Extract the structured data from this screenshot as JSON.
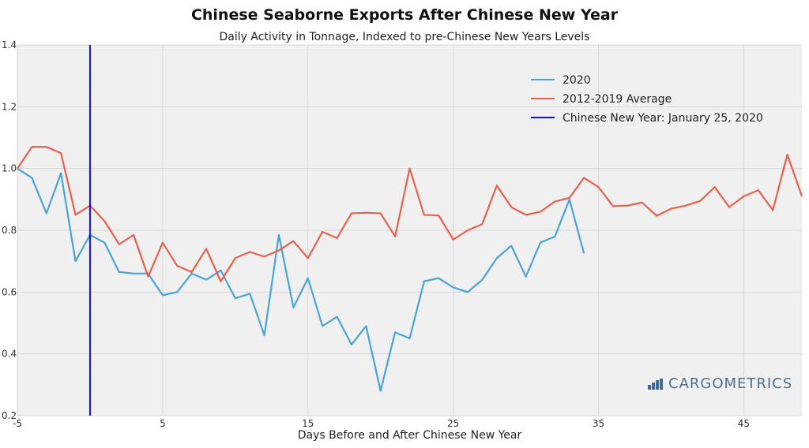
{
  "chart_data": {
    "type": "line",
    "title": "Chinese Seaborne Exports After Chinese New Year",
    "subtitle": "Daily Activity in Tonnage, Indexed to pre-Chinese New Years Levels",
    "xlabel": "Days Before and After Chinese New Year",
    "ylabel": "",
    "xlim": [
      -5,
      49
    ],
    "ylim": [
      0.2,
      1.4
    ],
    "xticks": [
      -5,
      5,
      15,
      25,
      35,
      45
    ],
    "yticks": [
      0.2,
      0.4,
      0.6,
      0.8,
      1.0,
      1.2,
      1.4
    ],
    "ytick_labels": [
      "0.2",
      "0.4",
      "0.6",
      "0.8",
      "1.0",
      "1.2",
      "1.4"
    ],
    "grid": true,
    "legend_position": "top-right",
    "series": [
      {
        "name": "2020",
        "color": "#4aa3d6",
        "x_start": -5,
        "values": [
          1.0,
          0.97,
          0.855,
          0.985,
          0.7,
          0.785,
          0.76,
          0.665,
          0.66,
          0.66,
          0.59,
          0.6,
          0.66,
          0.64,
          0.67,
          0.58,
          0.595,
          0.46,
          0.785,
          0.55,
          0.645,
          0.49,
          0.52,
          0.43,
          0.49,
          0.28,
          0.47,
          0.45,
          0.635,
          0.645,
          0.615,
          0.6,
          0.64,
          0.71,
          0.75,
          0.65,
          0.76,
          0.78,
          0.9,
          0.725
        ]
      },
      {
        "name": "2012-2019 Average",
        "color": "#e8604c",
        "x_start": -5,
        "values": [
          1.0,
          1.07,
          1.07,
          1.05,
          0.85,
          0.88,
          0.83,
          0.755,
          0.785,
          0.65,
          0.76,
          0.685,
          0.665,
          0.74,
          0.635,
          0.71,
          0.73,
          0.715,
          0.735,
          0.765,
          0.71,
          0.795,
          0.775,
          0.855,
          0.857,
          0.855,
          0.78,
          1.0,
          0.85,
          0.848,
          0.77,
          0.8,
          0.82,
          0.945,
          0.875,
          0.85,
          0.86,
          0.893,
          0.905,
          0.97,
          0.94,
          0.878,
          0.88,
          0.89,
          0.847,
          0.87,
          0.88,
          0.895,
          0.94,
          0.875,
          0.91,
          0.93,
          0.865,
          1.045,
          0.91
        ]
      }
    ],
    "vlines": [
      {
        "name": "Chinese New Year: January 25, 2020",
        "x": 0,
        "color": "#1010d8"
      }
    ],
    "annotations": [
      "CARGOMETRICS"
    ]
  }
}
